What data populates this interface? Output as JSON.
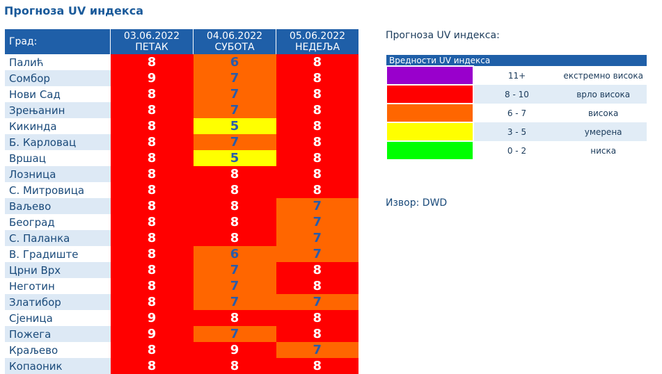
{
  "page_title": "Прогноза UV индекса",
  "table": {
    "city_header": "Град:",
    "days": [
      {
        "date": "03.06.2022",
        "weekday": "ПЕТАК"
      },
      {
        "date": "04.06.2022",
        "weekday": "СУБОТА"
      },
      {
        "date": "05.06.2022",
        "weekday": "НЕДЕЉА"
      }
    ],
    "rows": [
      {
        "city": "Палић",
        "values": [
          "8",
          "6",
          "8"
        ]
      },
      {
        "city": "Сомбор",
        "values": [
          "9",
          "7",
          "8"
        ]
      },
      {
        "city": "Нови Сад",
        "values": [
          "8",
          "7",
          "8"
        ]
      },
      {
        "city": "Зрењанин",
        "values": [
          "8",
          "7",
          "8"
        ]
      },
      {
        "city": "Кикинда",
        "values": [
          "8",
          "5",
          "8"
        ]
      },
      {
        "city": "Б. Карловац",
        "values": [
          "8",
          "7",
          "8"
        ]
      },
      {
        "city": "Вршац",
        "values": [
          "8",
          "5",
          "8"
        ]
      },
      {
        "city": "Лозница",
        "values": [
          "8",
          "8",
          "8"
        ]
      },
      {
        "city": "С. Митровица",
        "values": [
          "8",
          "8",
          "8"
        ]
      },
      {
        "city": "Ваљево",
        "values": [
          "8",
          "8",
          "7"
        ]
      },
      {
        "city": "Београд",
        "values": [
          "8",
          "8",
          "7"
        ]
      },
      {
        "city": "С. Паланка",
        "values": [
          "8",
          "8",
          "7"
        ]
      },
      {
        "city": "В. Градиште",
        "values": [
          "8",
          "6",
          "7"
        ]
      },
      {
        "city": "Црни Врх",
        "values": [
          "8",
          "7",
          "8"
        ]
      },
      {
        "city": "Неготин",
        "values": [
          "8",
          "7",
          "8"
        ]
      },
      {
        "city": "Златибор",
        "values": [
          "8",
          "7",
          "7"
        ]
      },
      {
        "city": "Сјеница",
        "values": [
          "9",
          "8",
          "8"
        ]
      },
      {
        "city": "Пожега",
        "values": [
          "9",
          "7",
          "8"
        ]
      },
      {
        "city": "Краљево",
        "values": [
          "8",
          "9",
          "7"
        ]
      },
      {
        "city": "Копаоник",
        "values": [
          "8",
          "8",
          "8"
        ]
      }
    ]
  },
  "legend": {
    "title": "Прогноза UV индекса:",
    "header": "Вредности UV индекса",
    "items": [
      {
        "range": "11+",
        "label": "екстремно висока",
        "color": "#9900cc"
      },
      {
        "range": "8 - 10",
        "label": "врло висока",
        "color": "#ff0000"
      },
      {
        "range": "6 - 7",
        "label": "висока",
        "color": "#ff6600"
      },
      {
        "range": "3 - 5",
        "label": "умерена",
        "color": "#ffff00"
      },
      {
        "range": "0 - 2",
        "label": "ниска",
        "color": "#00ff00"
      }
    ]
  },
  "source": "Извор: DWD"
}
